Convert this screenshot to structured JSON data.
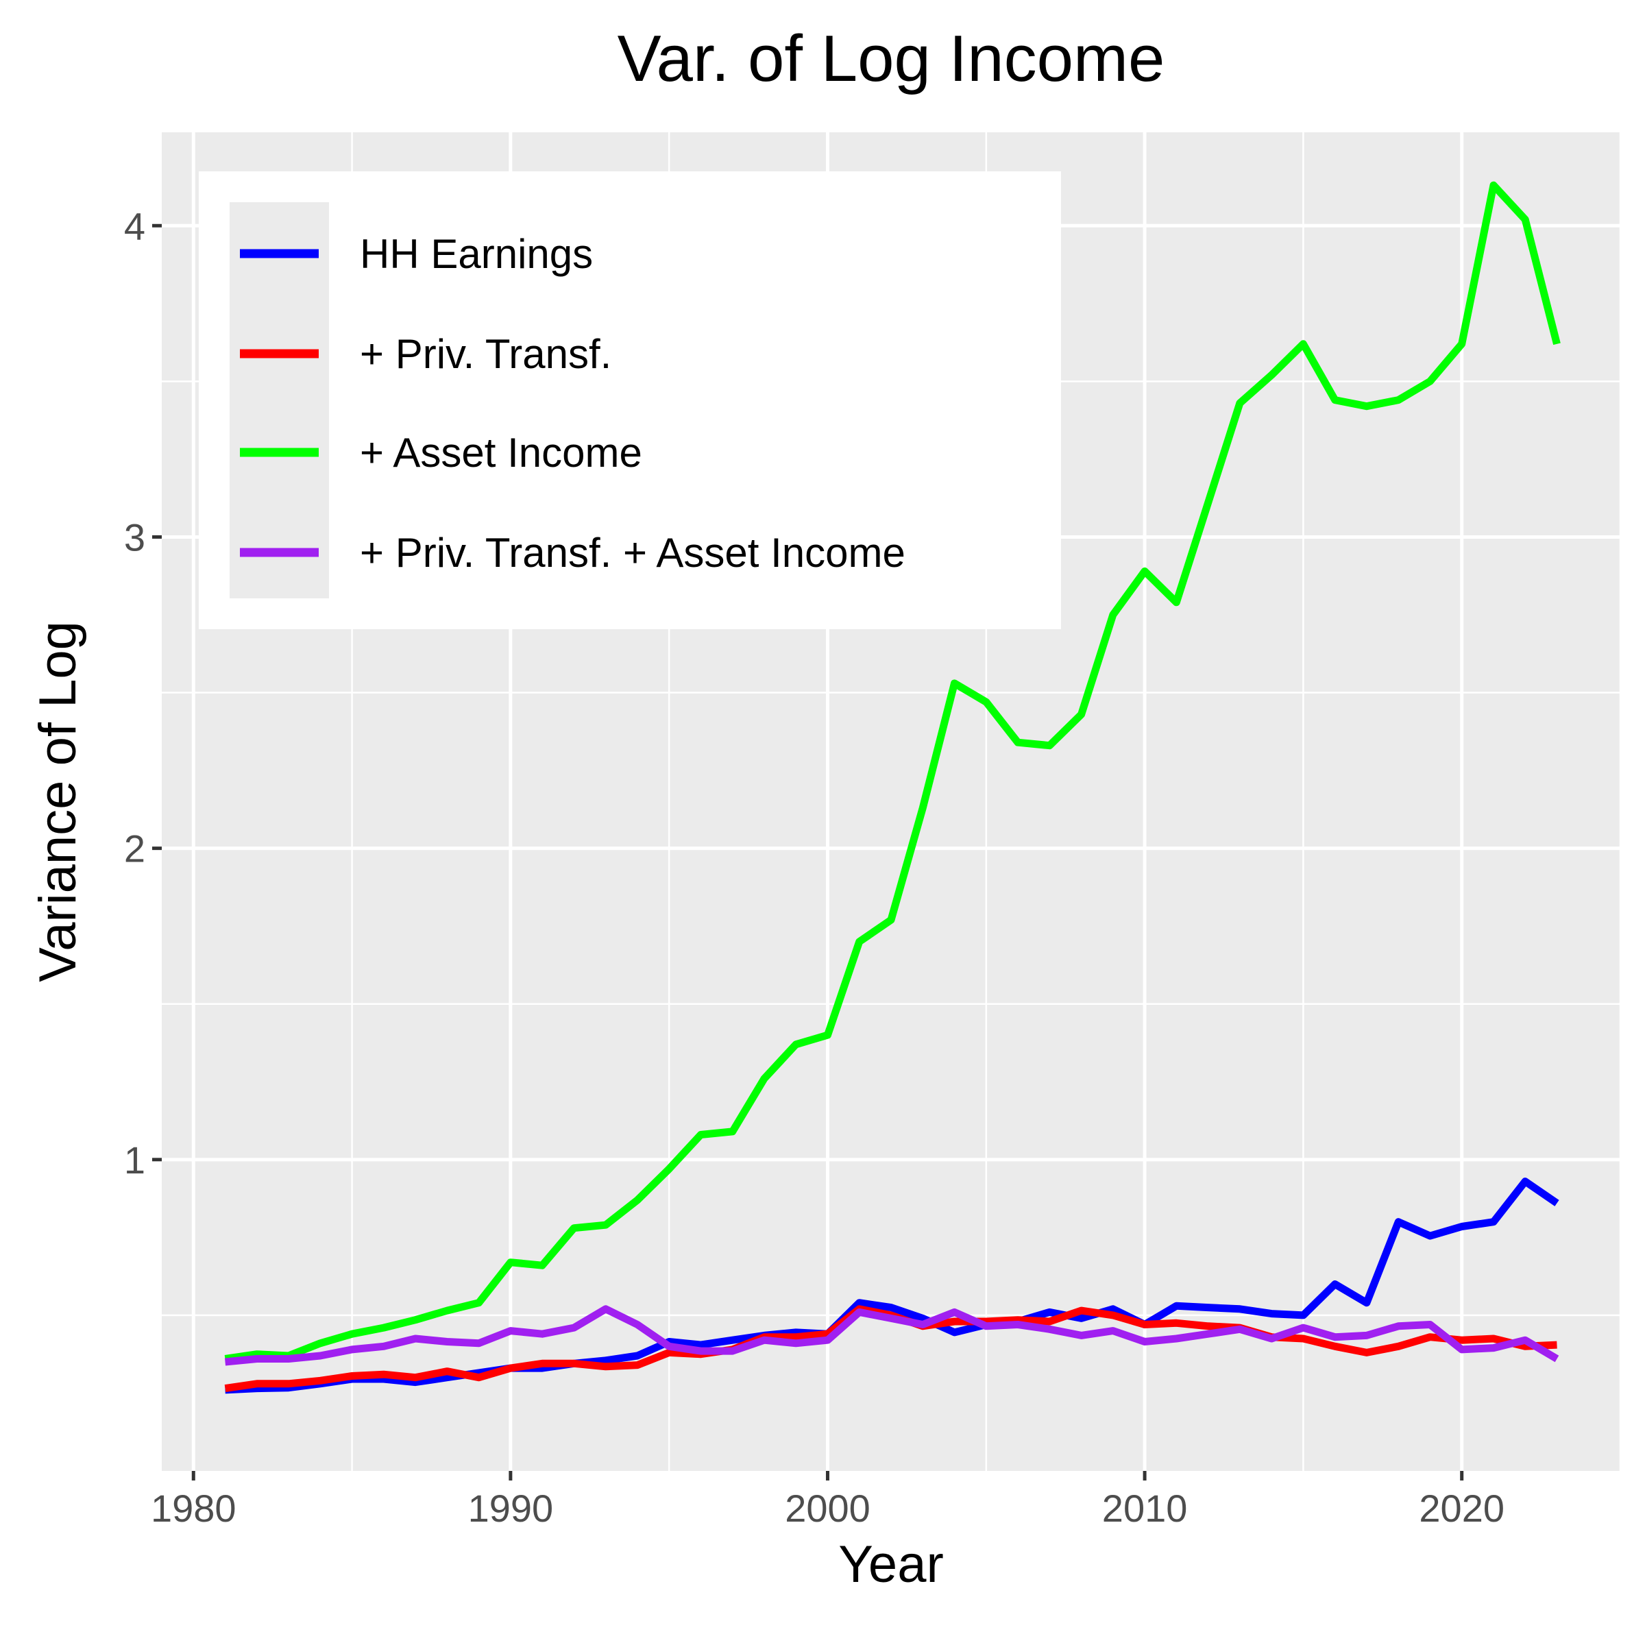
{
  "chart_data": {
    "type": "line",
    "title": "Var. of Log Income",
    "xlabel": "Year",
    "ylabel": "Variance of Log",
    "xlim": [
      1979,
      2025
    ],
    "ylim": [
      0.0,
      4.3
    ],
    "x_ticks": [
      1980,
      1990,
      2000,
      2010,
      2020
    ],
    "x_tick_labels": [
      "1980",
      "1990",
      "2000",
      "2010",
      "2020"
    ],
    "y_ticks": [
      1,
      2,
      3,
      4
    ],
    "y_tick_labels": [
      "1",
      "2",
      "3",
      "4"
    ],
    "grid": true,
    "legend_position": "top-left",
    "x": [
      1981,
      1982,
      1983,
      1984,
      1985,
      1986,
      1987,
      1988,
      1989,
      1990,
      1991,
      1992,
      1993,
      1994,
      1995,
      1996,
      1997,
      1998,
      1999,
      2000,
      2001,
      2002,
      2003,
      2004,
      2005,
      2006,
      2007,
      2008,
      2009,
      2010,
      2011,
      2012,
      2013,
      2014,
      2015,
      2016,
      2017,
      2018,
      2019,
      2020,
      2021,
      2022,
      2023
    ],
    "series": [
      {
        "name": "HH Earnings",
        "color": "#0000ff",
        "values": [
          0.26,
          0.265,
          0.267,
          0.28,
          0.295,
          0.295,
          0.285,
          0.3,
          0.315,
          0.33,
          0.33,
          0.345,
          0.355,
          0.37,
          0.415,
          0.405,
          0.42,
          0.435,
          0.445,
          0.44,
          0.54,
          0.525,
          0.49,
          0.445,
          0.47,
          0.48,
          0.51,
          0.49,
          0.52,
          0.47,
          0.53,
          0.525,
          0.52,
          0.505,
          0.5,
          0.6,
          0.54,
          0.8,
          0.755,
          0.785,
          0.8,
          0.93,
          0.86
        ]
      },
      {
        "name": "+ Priv. Transf.",
        "color": "#ff0000",
        "values": [
          0.265,
          0.28,
          0.28,
          0.29,
          0.305,
          0.31,
          0.3,
          0.32,
          0.3,
          0.33,
          0.345,
          0.345,
          0.335,
          0.34,
          0.38,
          0.375,
          0.39,
          0.43,
          0.43,
          0.44,
          0.52,
          0.5,
          0.465,
          0.48,
          0.48,
          0.485,
          0.48,
          0.515,
          0.5,
          0.47,
          0.475,
          0.465,
          0.46,
          0.43,
          0.425,
          0.4,
          0.38,
          0.4,
          0.43,
          0.42,
          0.425,
          0.4,
          0.405
        ]
      },
      {
        "name": "+ Asset Income",
        "color": "#00ff00",
        "values": [
          0.36,
          0.375,
          0.37,
          0.41,
          0.44,
          0.46,
          0.485,
          0.515,
          0.54,
          0.67,
          0.66,
          0.78,
          0.79,
          0.87,
          0.97,
          1.08,
          1.09,
          1.26,
          1.37,
          1.4,
          1.7,
          1.77,
          2.13,
          2.53,
          2.47,
          2.34,
          2.33,
          2.43,
          2.75,
          2.89,
          2.79,
          3.11,
          3.43,
          3.52,
          3.62,
          3.44,
          3.42,
          3.44,
          3.5,
          3.62,
          4.13,
          4.02,
          3.62
        ]
      },
      {
        "name": "+ Priv. Transf. + Asset Income",
        "color": "#a020f0",
        "values": [
          0.35,
          0.36,
          0.36,
          0.37,
          0.39,
          0.4,
          0.425,
          0.415,
          0.41,
          0.45,
          0.44,
          0.46,
          0.52,
          0.47,
          0.4,
          0.385,
          0.385,
          0.42,
          0.41,
          0.42,
          0.51,
          0.49,
          0.47,
          0.51,
          0.465,
          0.47,
          0.455,
          0.435,
          0.45,
          0.415,
          0.425,
          0.44,
          0.455,
          0.425,
          0.46,
          0.43,
          0.435,
          0.465,
          0.47,
          0.39,
          0.395,
          0.42,
          0.36
        ]
      }
    ]
  }
}
